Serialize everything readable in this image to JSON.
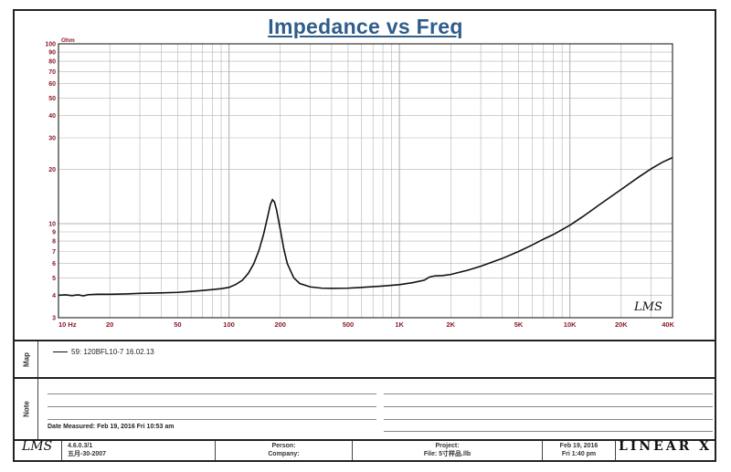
{
  "chart_data": {
    "type": "line",
    "title": "Impedance vs Freq",
    "ylabel": "Ohm",
    "xscale": "log",
    "yscale": "log",
    "xlim": [
      10,
      40000
    ],
    "ylim": [
      3,
      100
    ],
    "grid": true,
    "x_tick_labels": [
      {
        "v": 10,
        "label": "10  Hz"
      },
      {
        "v": 20,
        "label": "20"
      },
      {
        "v": 50,
        "label": "50"
      },
      {
        "v": 100,
        "label": "100"
      },
      {
        "v": 200,
        "label": "200"
      },
      {
        "v": 500,
        "label": "500"
      },
      {
        "v": 1000,
        "label": "1K"
      },
      {
        "v": 2000,
        "label": "2K"
      },
      {
        "v": 5000,
        "label": "5K"
      },
      {
        "v": 10000,
        "label": "10K"
      },
      {
        "v": 20000,
        "label": "20K"
      },
      {
        "v": 40000,
        "label": "40K"
      }
    ],
    "y_tick_labels": [
      {
        "v": 100,
        "label": "100"
      },
      {
        "v": 90,
        "label": "90"
      },
      {
        "v": 80,
        "label": "80"
      },
      {
        "v": 70,
        "label": "70"
      },
      {
        "v": 60,
        "label": "60"
      },
      {
        "v": 50,
        "label": "50"
      },
      {
        "v": 40,
        "label": "40"
      },
      {
        "v": 30,
        "label": "30"
      },
      {
        "v": 20,
        "label": "20"
      },
      {
        "v": 10,
        "label": "10"
      },
      {
        "v": 9,
        "label": "9"
      },
      {
        "v": 8,
        "label": "8"
      },
      {
        "v": 7,
        "label": "7"
      },
      {
        "v": 6,
        "label": "6"
      },
      {
        "v": 5,
        "label": "5"
      },
      {
        "v": 4,
        "label": "4"
      },
      {
        "v": 3,
        "label": "3"
      }
    ],
    "series": [
      {
        "name": "59: 120BFL10-7 16.02.13",
        "x": [
          10,
          11,
          12,
          13,
          14,
          15,
          17,
          20,
          25,
          30,
          40,
          50,
          60,
          70,
          80,
          90,
          100,
          110,
          120,
          130,
          140,
          150,
          160,
          170,
          175,
          180,
          185,
          190,
          200,
          210,
          220,
          240,
          260,
          300,
          350,
          400,
          500,
          600,
          800,
          1000,
          1200,
          1400,
          1500,
          1600,
          1800,
          2000,
          2500,
          3000,
          4000,
          5000,
          6000,
          7000,
          8000,
          10000,
          12000,
          15000,
          20000,
          25000,
          30000,
          35000,
          40000
        ],
        "y": [
          4.0,
          4.02,
          3.98,
          4.02,
          3.97,
          4.03,
          4.05,
          4.05,
          4.07,
          4.1,
          4.12,
          4.15,
          4.2,
          4.25,
          4.3,
          4.35,
          4.42,
          4.6,
          4.85,
          5.3,
          6.0,
          7.1,
          8.8,
          11.3,
          12.8,
          13.6,
          13.2,
          12.0,
          9.3,
          7.2,
          6.0,
          5.0,
          4.65,
          4.45,
          4.38,
          4.37,
          4.38,
          4.42,
          4.5,
          4.58,
          4.7,
          4.85,
          5.05,
          5.12,
          5.15,
          5.22,
          5.5,
          5.8,
          6.4,
          7.0,
          7.6,
          8.2,
          8.7,
          9.8,
          11.0,
          12.8,
          15.5,
          18.0,
          20.2,
          22.0,
          23.3
        ]
      }
    ]
  },
  "lms_mark": "LMS",
  "legend_text": "59: 120BFL10-7 16.02.13",
  "side": {
    "map": "Map",
    "note": "Note"
  },
  "date_measured": "Date Measured: Feb 19, 2016  Fri 10:53 am",
  "footer": {
    "logo": "LMS",
    "version": "4.6.0.3/1",
    "version_date": "五月-30-2007",
    "person": "Person:",
    "company": "Company:",
    "project": "Project:",
    "file": "File: 5寸样品.llb",
    "date": "Feb 19, 2016",
    "time": "Fri  1:40 pm",
    "brand": "LINEAR X"
  },
  "colors": {
    "title": "#2f5d8a",
    "tick_label": "#8b1a2a",
    "grid": "#b3b3b3",
    "curve": "#111111"
  }
}
